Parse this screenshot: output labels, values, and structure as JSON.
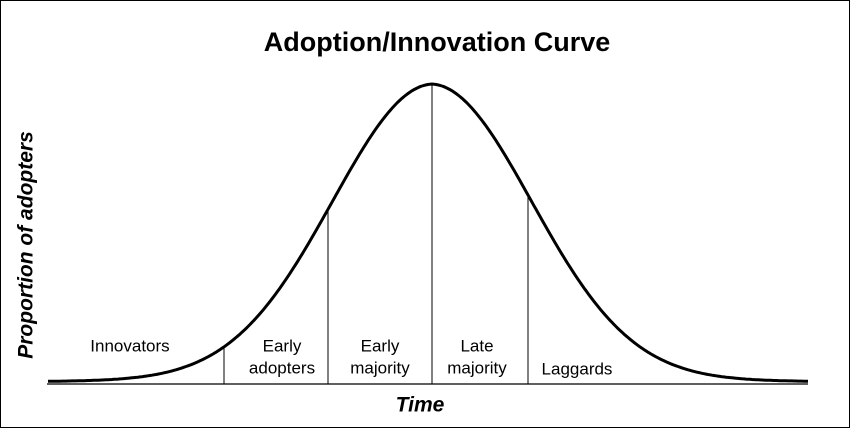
{
  "title": "Adoption/Innovation Curve",
  "y_axis_label": "Proportion of adopters",
  "x_axis_label": "Time",
  "segments": [
    {
      "lines": [
        "Innovators"
      ]
    },
    {
      "lines": [
        "Early",
        "adopters"
      ]
    },
    {
      "lines": [
        "Early",
        "majority"
      ]
    },
    {
      "lines": [
        "Late",
        "majority"
      ]
    },
    {
      "lines": [
        "Laggards"
      ]
    }
  ]
}
